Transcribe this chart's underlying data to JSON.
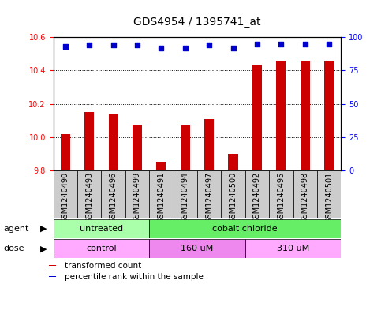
{
  "title": "GDS4954 / 1395741_at",
  "samples": [
    "GSM1240490",
    "GSM1240493",
    "GSM1240496",
    "GSM1240499",
    "GSM1240491",
    "GSM1240494",
    "GSM1240497",
    "GSM1240500",
    "GSM1240492",
    "GSM1240495",
    "GSM1240498",
    "GSM1240501"
  ],
  "bar_values": [
    10.02,
    10.15,
    10.14,
    10.07,
    9.85,
    10.07,
    10.11,
    9.9,
    10.43,
    10.46,
    10.46,
    10.46
  ],
  "percentile_values": [
    93,
    94,
    94,
    94,
    92,
    92,
    94,
    92,
    95,
    95,
    95,
    95
  ],
  "bar_color": "#cc0000",
  "percentile_color": "#0000cc",
  "ylim_left": [
    9.8,
    10.6
  ],
  "ylim_right": [
    0,
    100
  ],
  "yticks_left": [
    9.8,
    10.0,
    10.2,
    10.4,
    10.6
  ],
  "yticks_right": [
    0,
    25,
    50,
    75,
    100
  ],
  "agent_labels": [
    {
      "text": "untreated",
      "start": 0,
      "end": 4,
      "color": "#aaffaa"
    },
    {
      "text": "cobalt chloride",
      "start": 4,
      "end": 12,
      "color": "#66ee66"
    }
  ],
  "dose_labels": [
    {
      "text": "control",
      "start": 0,
      "end": 4,
      "color": "#ffaaff"
    },
    {
      "text": "160 uM",
      "start": 4,
      "end": 8,
      "color": "#ee88ee"
    },
    {
      "text": "310 uM",
      "start": 8,
      "end": 12,
      "color": "#ffaaff"
    }
  ],
  "legend_items": [
    {
      "color": "#cc0000",
      "label": "transformed count"
    },
    {
      "color": "#0000cc",
      "label": "percentile rank within the sample"
    }
  ],
  "background_color": "#ffffff",
  "plot_bg_color": "#ffffff",
  "bar_width": 0.4,
  "tick_label_fontsize": 7,
  "title_fontsize": 10,
  "annot_fontsize": 8,
  "legend_fontsize": 7.5
}
